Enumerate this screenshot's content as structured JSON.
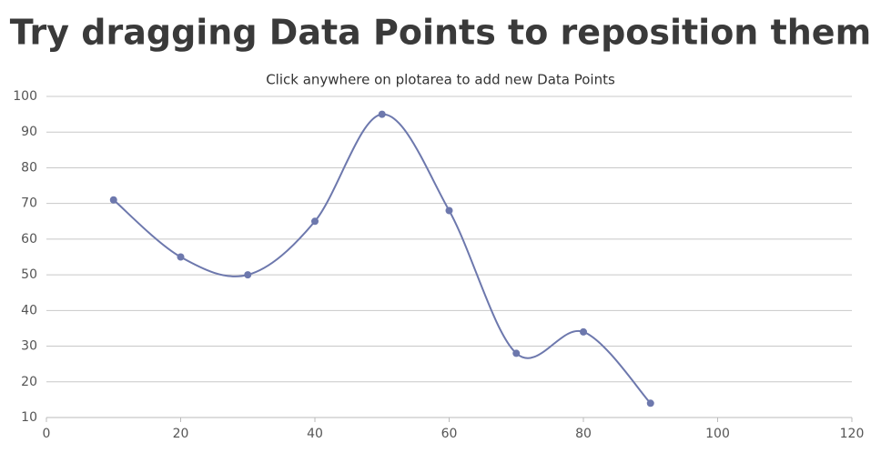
{
  "chart_data": {
    "type": "spline",
    "title": "Try dragging Data Points to reposition them",
    "subtitle": "Click anywhere on plotarea to add new Data Points",
    "x": [
      10,
      20,
      30,
      40,
      50,
      60,
      70,
      80,
      90
    ],
    "series": [
      {
        "color": "#6d78ad",
        "values": [
          71,
          55,
          50,
          65,
          95,
          68,
          28,
          34,
          14
        ]
      }
    ],
    "xlim": [
      0,
      120
    ],
    "xticks": [
      0,
      20,
      40,
      60,
      80,
      100,
      120
    ],
    "ylim": [
      10,
      100
    ],
    "yticks": [
      10,
      20,
      30,
      40,
      50,
      60,
      70,
      80,
      90,
      100
    ],
    "grid": true
  }
}
